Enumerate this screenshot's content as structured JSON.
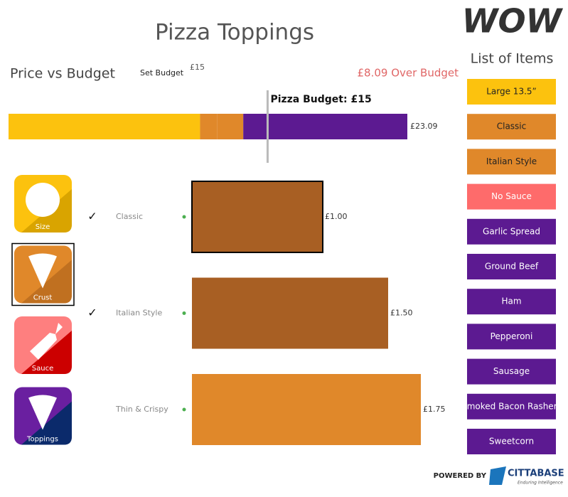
{
  "logo": "WOW",
  "title": "Pizza Toppings",
  "budget_panel": {
    "heading": "Price vs Budget",
    "set_budget": "Set Budget",
    "set_budget_value": "£15",
    "over_budget": "£8.09 Over Budget",
    "budget_line_label": "Pizza Budget: £15",
    "budget": 15,
    "xlim": [
      0,
      23.09
    ],
    "segments": [
      {
        "value": 11.09,
        "color": "#fcc20e"
      },
      {
        "value": 1,
        "color": "#e0882a"
      },
      {
        "value": 1.5,
        "color": "#e0882a"
      },
      {
        "value": 9.5,
        "color": "#5c1a91"
      }
    ],
    "total": 23.09,
    "total_label": "£23.09"
  },
  "categories": [
    {
      "label": "Size",
      "selected": false
    },
    {
      "label": "Crust",
      "selected": true
    },
    {
      "label": "Sauce",
      "selected": false
    },
    {
      "label": "Toppings",
      "selected": false
    }
  ],
  "options": {
    "xlim": [
      0,
      2
    ],
    "rows": [
      {
        "name": "Classic",
        "checked": "✓",
        "value": 1,
        "value_label": "£1.00",
        "color": "#a85f23",
        "outlined": true
      },
      {
        "name": "Italian Style",
        "checked": "✓",
        "value": 1.5,
        "value_label": "£1.50",
        "color": "#a85f23",
        "outlined": false
      },
      {
        "name": "Thin & Crispy",
        "value": 1.75,
        "value_label": "£1.75",
        "color": "#e0882a",
        "outlined": false
      }
    ]
  },
  "list_heading": "List of Items",
  "list_items": [
    {
      "label": "Large 13.5”",
      "color": "#fcc20e"
    },
    {
      "label": "Classic",
      "color": "#e0882a"
    },
    {
      "label": "Italian Style",
      "color": "#e0882a"
    },
    {
      "label": "No Sauce",
      "color": "#fe6b6b"
    },
    {
      "label": "Garlic Spread",
      "color": "#5c1a91"
    },
    {
      "label": "Ground Beef",
      "color": "#5c1a91"
    },
    {
      "label": "Ham",
      "color": "#5c1a91"
    },
    {
      "label": "Pepperoni",
      "color": "#5c1a91"
    },
    {
      "label": "Sausage",
      "color": "#5c1a91"
    },
    {
      "label": "Smoked Bacon Rashers",
      "color": "#5c1a91"
    },
    {
      "label": "Sweetcorn",
      "color": "#5c1a91"
    }
  ],
  "footer": {
    "powered_by": "POWERED BY",
    "brand": "CITTABASE",
    "tagline": "Enduring Intelligence"
  }
}
